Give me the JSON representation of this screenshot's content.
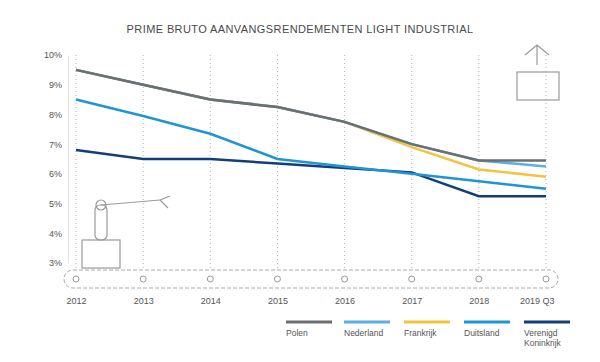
{
  "chart_data": {
    "type": "line",
    "title": "PRIME BRUTO AANVANGSRENDEMENTEN LIGHT INDUSTRIAL",
    "categories": [
      "2012",
      "2013",
      "2014",
      "2015",
      "2016",
      "2017",
      "2018",
      "2019 Q3"
    ],
    "series": [
      {
        "name": "Polen",
        "color": "#6d6e72",
        "values": [
          9.5,
          9.0,
          8.5,
          8.25,
          7.75,
          7.0,
          6.45,
          6.45
        ]
      },
      {
        "name": "Nederland",
        "color": "#5aaee2",
        "values": [
          9.5,
          9.0,
          8.5,
          8.25,
          7.75,
          7.0,
          6.45,
          6.25
        ]
      },
      {
        "name": "Frankrijk",
        "color": "#f5c342",
        "values": [
          9.5,
          9.0,
          8.5,
          8.25,
          7.75,
          6.9,
          6.15,
          5.9
        ]
      },
      {
        "name": "Duitsland",
        "color": "#1f95d3",
        "values": [
          8.5,
          7.95,
          7.35,
          6.5,
          6.25,
          6.0,
          5.75,
          5.5
        ]
      },
      {
        "name": "Verenigd Koninkrijk",
        "color": "#123f7a",
        "values": [
          6.8,
          6.5,
          6.5,
          6.35,
          6.2,
          6.05,
          5.25,
          5.25
        ]
      }
    ],
    "ylim": [
      3,
      10
    ],
    "yticks": [
      {
        "value": 3,
        "label": "3%"
      },
      {
        "value": 4,
        "label": "4%"
      },
      {
        "value": 5,
        "label": "5%"
      },
      {
        "value": 6,
        "label": "6%"
      },
      {
        "value": 7,
        "label": "7%"
      },
      {
        "value": 8,
        "label": "8%"
      },
      {
        "value": 9,
        "label": "9%"
      },
      {
        "value": 10,
        "label": "10%"
      }
    ],
    "grid": true,
    "legend": "bottom"
  }
}
